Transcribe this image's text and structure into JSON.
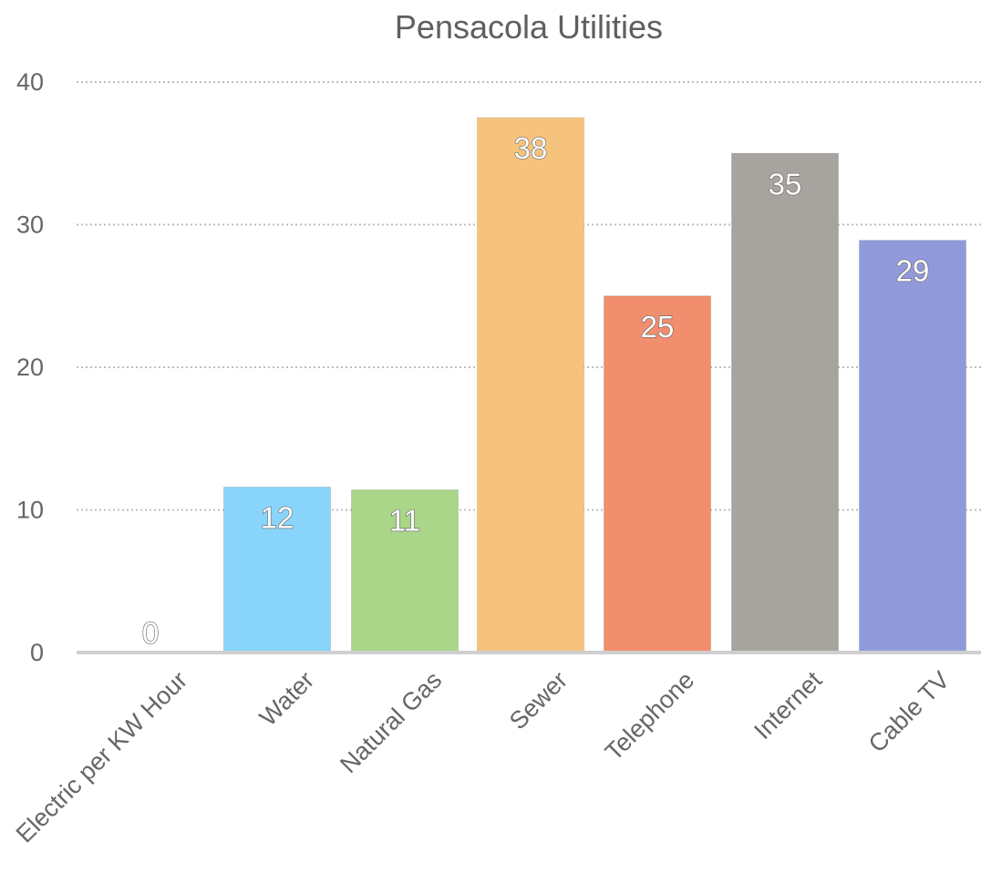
{
  "chart_data": {
    "type": "bar",
    "title": "Pensacola Utilities",
    "categories": [
      "Electric per KW Hour",
      "Water",
      "Natural Gas",
      "Sewer",
      "Telephone",
      "Internet",
      "Cable TV"
    ],
    "values": [
      0,
      12,
      11,
      38,
      25,
      35,
      29
    ],
    "data_labels": [
      "0",
      "12",
      "11",
      "38",
      "25",
      "35",
      "29"
    ],
    "plot_values": [
      0,
      11.6,
      11.4,
      37.5,
      25,
      35,
      28.9
    ],
    "ylim": [
      0,
      40
    ],
    "yticks": [
      0,
      10,
      20,
      30,
      40
    ],
    "grid": true,
    "legend": "none",
    "colors": [
      "#a6dcf7",
      "#88d4fb",
      "#a9d689",
      "#f6c37d",
      "#f08e6d",
      "#a7a49f",
      "#909adb"
    ],
    "xlabel": "",
    "ylabel": ""
  }
}
